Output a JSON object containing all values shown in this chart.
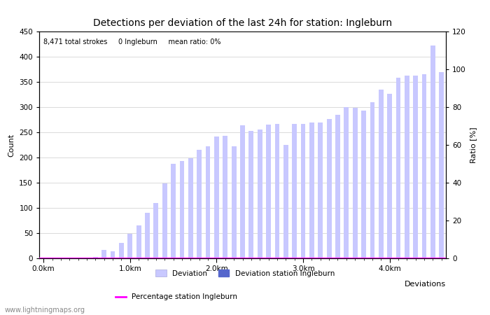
{
  "title": "Detections per deviation of the last 24h for station: Ingleburn",
  "info_text": "8,471 total strokes     0 Ingleburn     mean ratio: 0%",
  "xlabel": "Deviations",
  "ylabel_left": "Count",
  "ylabel_right": "Ratio [%]",
  "ylim_left": [
    0,
    450
  ],
  "ylim_right": [
    0,
    120
  ],
  "yticks_left": [
    0,
    50,
    100,
    150,
    200,
    250,
    300,
    350,
    400,
    450
  ],
  "yticks_right": [
    0,
    20,
    40,
    60,
    80,
    100,
    120
  ],
  "xtick_labels": [
    "0.0km",
    "1.0km",
    "2.0km",
    "3.0km",
    "4.0km"
  ],
  "bar_values": [
    0,
    1,
    2,
    2,
    1,
    2,
    3,
    16,
    14,
    30,
    48,
    65,
    90,
    110,
    148,
    188,
    193,
    198,
    215,
    222,
    242,
    243,
    222,
    264,
    253,
    255,
    265,
    267,
    225,
    267,
    267,
    270,
    270,
    277,
    285,
    300,
    299,
    293,
    310,
    335,
    327,
    359,
    362,
    362,
    365,
    422,
    370
  ],
  "bar_color_light": "#c8c8ff",
  "bar_color_dark": "#5566cc",
  "bar_width": 0.55,
  "percentage_line_color": "#ff00ff",
  "background_color": "#ffffff",
  "grid_color": "#cccccc",
  "title_fontsize": 10,
  "axis_fontsize": 8,
  "tick_fontsize": 7.5,
  "watermark": "www.lightningmaps.org"
}
